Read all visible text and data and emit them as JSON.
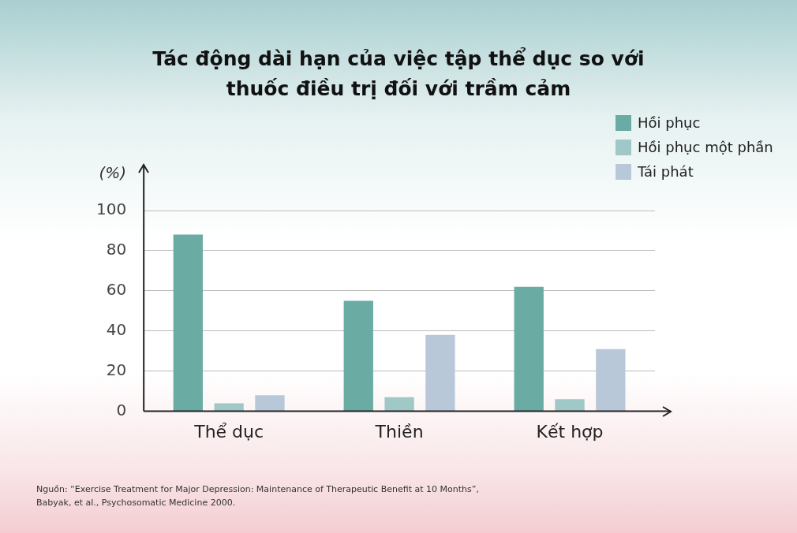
{
  "chart_data": {
    "type": "bar",
    "title": "Tác động dài hạn của việc tập thể dục so với thuốc điều trị đối với trầm cảm",
    "ylabel": "(%)",
    "categories": [
      "Thể dục",
      "Thiền",
      "Kết hợp"
    ],
    "series": [
      {
        "name": "Hồi phục",
        "color": "#6aaba3",
        "values": [
          88,
          55,
          62
        ]
      },
      {
        "name": "Hồi phục một phần",
        "color": "#9fc8c6",
        "values": [
          4,
          7,
          6
        ]
      },
      {
        "name": "Tái phát",
        "color": "#b9c8d8",
        "values": [
          8,
          38,
          31
        ]
      }
    ],
    "ylim": [
      0,
      100
    ],
    "yticks": [
      0,
      20,
      40,
      60,
      80,
      100
    ],
    "grid": "y",
    "legend": "top right",
    "annotations": [
      "Nguồn: “Exercise Treatment for Major Depression: Maintenance of Therapeutic Benefit at 10 Months”, Babyak, et al., Psychosomatic Medicine 2000."
    ]
  }
}
